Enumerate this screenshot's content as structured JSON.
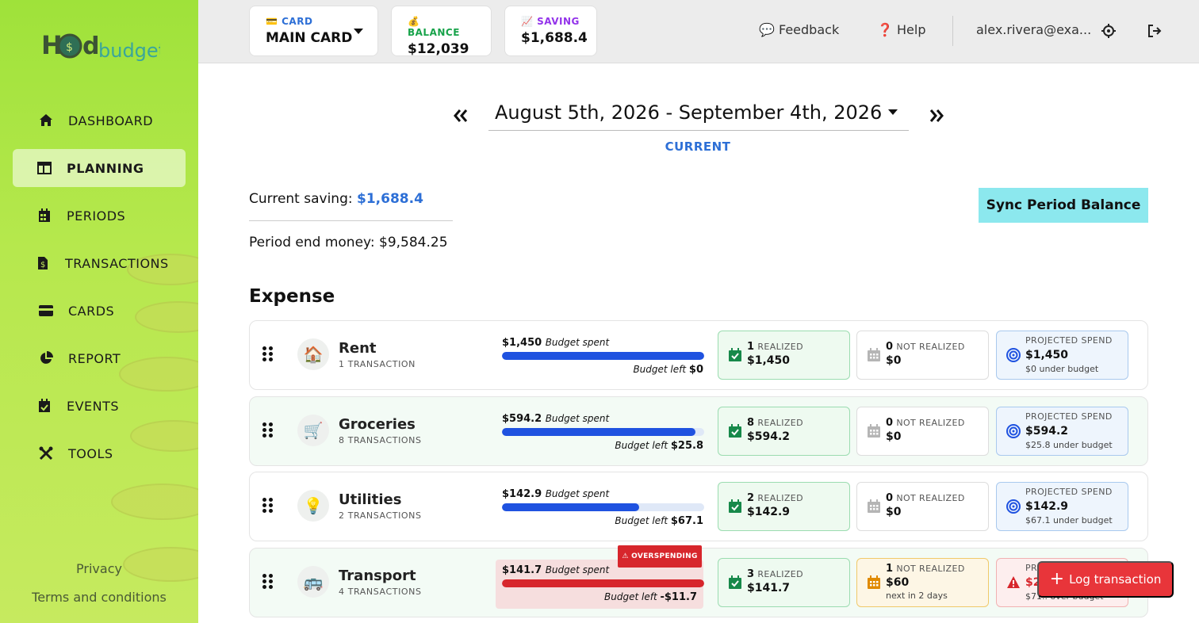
{
  "brand": {
    "logo_main": "H",
    "logo_sub": "budget",
    "logo_text": "HODL budget"
  },
  "sidebar": {
    "items": [
      {
        "label": "DASHBOARD",
        "icon": "home-icon"
      },
      {
        "label": "PLANNING",
        "icon": "table-icon"
      },
      {
        "label": "PERIODS",
        "icon": "calendar-icon"
      },
      {
        "label": "TRANSACTIONS",
        "icon": "dollar-file-icon"
      },
      {
        "label": "CARDS",
        "icon": "credit-card-icon"
      },
      {
        "label": "REPORT",
        "icon": "pie-chart-icon"
      },
      {
        "label": "EVENTS",
        "icon": "calendar-check-icon"
      },
      {
        "label": "TOOLS",
        "icon": "tools-icon"
      }
    ],
    "active": "PLANNING",
    "privacy": "Privacy",
    "terms": "Terms and conditions"
  },
  "topbar": {
    "card_label": "💳 CARD",
    "card_value": "MAIN CARD",
    "balance_label": "💰 BALANCE",
    "balance_value": "$12,039",
    "saving_label": "📈 SAVING",
    "saving_value": "$1,688.4",
    "feedback": "💬 Feedback",
    "help": "❓ Help",
    "email": "alex.rivera@exa..."
  },
  "colors": {
    "balance": "#17a34a",
    "saving": "#9333ea",
    "card": "#2d6fd6",
    "accent_blue": "#2d6fd6",
    "danger": "#e8353a"
  },
  "period": {
    "range": "August 5th, 2026 - September 4th, 2026",
    "status": "CURRENT"
  },
  "summary": {
    "current_saving_label": "Current saving:",
    "current_saving_value": "$1,688.4",
    "period_end_label": "Period end money:",
    "period_end_value": "$9,584.25",
    "sync_button": "Sync Period Balance"
  },
  "expense_title": "Expense",
  "expenses": [
    {
      "emoji": "🏠",
      "name": "Rent",
      "count": "1 TRANSACTION",
      "spent": "$1,450",
      "spent_label": "Budget spent",
      "left_label": "Budget left",
      "left": "$0",
      "progress": 1.0,
      "overspending": false,
      "realized_count": "1",
      "realized_label": "REALIZED",
      "realized_value": "$1,450",
      "not_realized_count": "0",
      "not_realized_label": "NOT REALIZED",
      "not_realized_value": "$0",
      "not_realized_note": "",
      "projected_label": "PROJECTED SPEND",
      "projected_value": "$1,450",
      "projected_note": "$0 under budget"
    },
    {
      "emoji": "🛒",
      "name": "Groceries",
      "count": "8 TRANSACTIONS",
      "spent": "$594.2",
      "spent_label": "Budget spent",
      "left_label": "Budget left",
      "left": "$25.8",
      "progress": 0.958,
      "overspending": false,
      "realized_count": "8",
      "realized_label": "REALIZED",
      "realized_value": "$594.2",
      "not_realized_count": "0",
      "not_realized_label": "NOT REALIZED",
      "not_realized_value": "$0",
      "not_realized_note": "",
      "projected_label": "PROJECTED SPEND",
      "projected_value": "$594.2",
      "projected_note": "$25.8 under budget"
    },
    {
      "emoji": "💡",
      "name": "Utilities",
      "count": "2 TRANSACTIONS",
      "spent": "$142.9",
      "spent_label": "Budget spent",
      "left_label": "Budget left",
      "left": "$67.1",
      "progress": 0.68,
      "overspending": false,
      "realized_count": "2",
      "realized_label": "REALIZED",
      "realized_value": "$142.9",
      "not_realized_count": "0",
      "not_realized_label": "NOT REALIZED",
      "not_realized_value": "$0",
      "not_realized_note": "",
      "projected_label": "PROJECTED SPEND",
      "projected_value": "$142.9",
      "projected_note": "$67.1 under budget"
    },
    {
      "emoji": "🚌",
      "name": "Transport",
      "count": "4 TRANSACTIONS",
      "spent": "$141.7",
      "spent_label": "Budget spent",
      "left_label": "Budget left",
      "left": "-$11.7",
      "progress": 1.0,
      "overspending": true,
      "overspending_label": "⚠ OVERSPENDING",
      "realized_count": "3",
      "realized_label": "REALIZED",
      "realized_value": "$141.7",
      "not_realized_count": "1",
      "not_realized_label": "NOT REALIZED",
      "not_realized_value": "$60",
      "not_realized_note": "next in 2 days",
      "projected_label": "PROJECTED SPEND",
      "projected_value": "$2...",
      "projected_note": "$71.. over budget"
    }
  ],
  "fab": {
    "label": "Log transaction"
  }
}
